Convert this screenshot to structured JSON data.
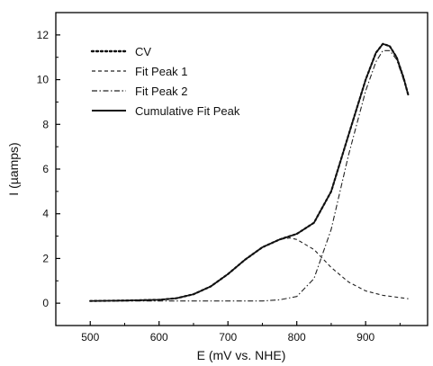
{
  "chart_data": {
    "type": "line",
    "xlabel": "E (mV vs. NHE)",
    "ylabel": "I (µamps)",
    "xlim": [
      450,
      990
    ],
    "ylim": [
      -1,
      13
    ],
    "xticks": [
      500,
      600,
      700,
      800,
      900
    ],
    "yticks": [
      0,
      2,
      4,
      6,
      8,
      10,
      12
    ],
    "grid": false,
    "legend_position": "top-left",
    "series": [
      {
        "name": "CV",
        "style": "dotted",
        "x": [
          500,
          550,
          600,
          625,
          650,
          675,
          700,
          725,
          750,
          775,
          800,
          825,
          850,
          875,
          900,
          915,
          925,
          935,
          945,
          955,
          962
        ],
        "y": [
          0.1,
          0.12,
          0.15,
          0.22,
          0.4,
          0.75,
          1.3,
          1.95,
          2.5,
          2.85,
          3.1,
          3.6,
          5.0,
          7.5,
          10.0,
          11.2,
          11.6,
          11.5,
          11.0,
          10.1,
          9.3
        ]
      },
      {
        "name": "Fit Peak 1",
        "style": "dashed",
        "x": [
          500,
          550,
          600,
          625,
          650,
          675,
          700,
          725,
          750,
          775,
          790,
          800,
          825,
          850,
          875,
          900,
          925,
          962
        ],
        "y": [
          0.1,
          0.11,
          0.15,
          0.22,
          0.4,
          0.75,
          1.3,
          1.95,
          2.5,
          2.85,
          2.92,
          2.85,
          2.4,
          1.6,
          0.95,
          0.55,
          0.35,
          0.2
        ]
      },
      {
        "name": "Fit Peak 2",
        "style": "dash-dot",
        "x": [
          500,
          600,
          700,
          750,
          775,
          800,
          825,
          850,
          875,
          900,
          915,
          925,
          935,
          945,
          955,
          962
        ],
        "y": [
          0.1,
          0.1,
          0.1,
          0.1,
          0.15,
          0.3,
          1.1,
          3.3,
          6.6,
          9.5,
          10.8,
          11.3,
          11.3,
          10.9,
          10.0,
          9.3
        ]
      },
      {
        "name": "Cumulative Fit Peak",
        "style": "solid",
        "x": [
          500,
          550,
          600,
          625,
          650,
          675,
          700,
          725,
          750,
          775,
          800,
          825,
          850,
          875,
          900,
          915,
          925,
          935,
          945,
          955,
          962
        ],
        "y": [
          0.1,
          0.12,
          0.15,
          0.22,
          0.4,
          0.75,
          1.3,
          1.95,
          2.5,
          2.85,
          3.1,
          3.6,
          5.0,
          7.5,
          10.0,
          11.2,
          11.6,
          11.5,
          11.0,
          10.1,
          9.3
        ]
      }
    ]
  }
}
